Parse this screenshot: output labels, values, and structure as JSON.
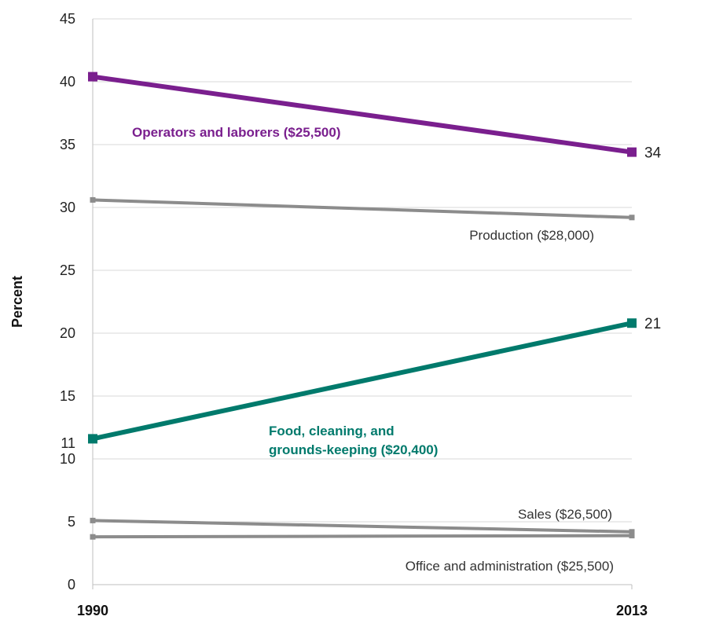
{
  "chart_data": {
    "type": "line",
    "ylabel": "Percent",
    "xlabel": "",
    "x": [
      "1990",
      "2013"
    ],
    "ylim": [
      0,
      45
    ],
    "yticks": [
      0,
      5,
      10,
      15,
      20,
      25,
      30,
      35,
      40,
      45
    ],
    "extra_ytick_labels": [
      {
        "value": 11,
        "label": "11"
      }
    ],
    "grid": "horizontal",
    "series": [
      {
        "name": "Operators and laborers ($25,500)",
        "values": [
          40.4,
          34.4
        ],
        "color": "#7a1f8e",
        "emphasis": true,
        "end_label": "34",
        "label_lines": [
          "Operators and laborers ($25,500)"
        ]
      },
      {
        "name": "Production ($28,000)",
        "values": [
          30.6,
          29.2
        ],
        "color": "#8c8c8c",
        "emphasis": false,
        "end_label": "",
        "label_lines": [
          "Production ($28,000)"
        ]
      },
      {
        "name": "Food, cleaning, and grounds-keeping ($20,400)",
        "values": [
          11.6,
          20.8
        ],
        "color": "#007a6c",
        "emphasis": true,
        "end_label": "21",
        "label_lines": [
          "Food, cleaning, and",
          "grounds-keeping ($20,400)"
        ]
      },
      {
        "name": "Sales ($26,500)",
        "values": [
          5.1,
          4.2
        ],
        "color": "#8c8c8c",
        "emphasis": false,
        "end_label": "",
        "label_lines": [
          "Sales ($26,500)"
        ]
      },
      {
        "name": "Office and administration ($25,500)",
        "values": [
          3.8,
          3.9
        ],
        "color": "#8c8c8c",
        "emphasis": false,
        "end_label": "",
        "label_lines": [
          "Office and administration ($25,500)"
        ]
      }
    ]
  }
}
